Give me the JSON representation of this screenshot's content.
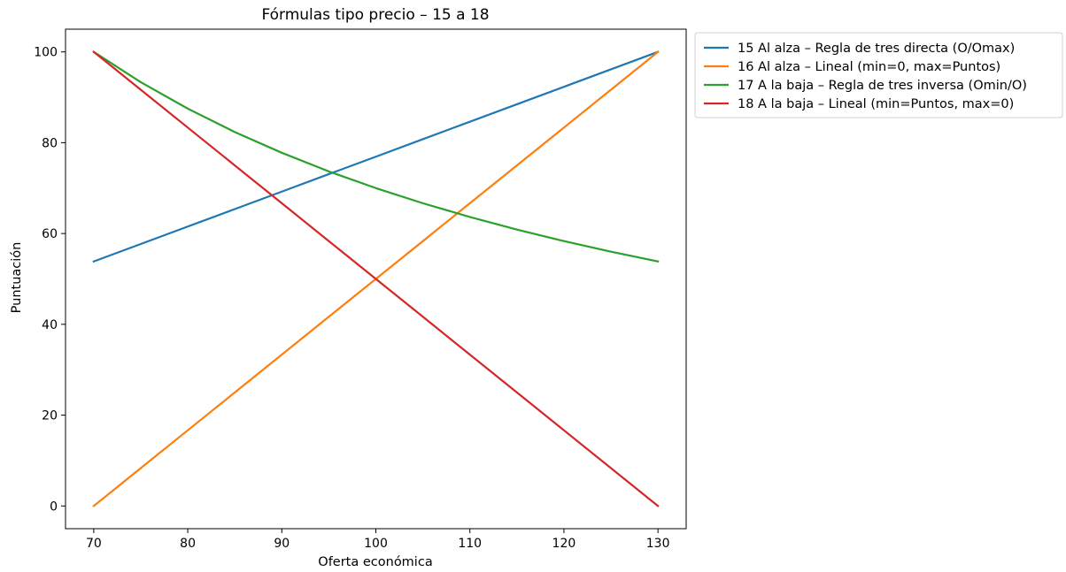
{
  "chart_data": {
    "type": "line",
    "title": "Fórmulas tipo precio – 15 a 18",
    "xlabel": "Oferta económica",
    "ylabel": "Puntuación",
    "xlim": [
      67,
      133
    ],
    "ylim": [
      -5,
      105
    ],
    "xticks": [
      70,
      80,
      90,
      100,
      110,
      120,
      130
    ],
    "yticks": [
      0,
      20,
      40,
      60,
      80,
      100
    ],
    "xtick_labels": [
      "70",
      "80",
      "90",
      "100",
      "110",
      "120",
      "130"
    ],
    "ytick_labels": [
      "0",
      "20",
      "40",
      "60",
      "80",
      "100"
    ],
    "grid": false,
    "legend_placement": "outside upper-right",
    "series": [
      {
        "name": "15 Al alza – Regla de tres directa (O/Omax)",
        "color": "#1f77b4",
        "x": [
          70,
          75,
          80,
          85,
          90,
          95,
          100,
          105,
          110,
          115,
          120,
          125,
          130
        ],
        "y": [
          53.85,
          57.69,
          61.54,
          65.38,
          69.23,
          73.08,
          76.92,
          80.77,
          84.62,
          88.46,
          92.31,
          96.15,
          100.0
        ]
      },
      {
        "name": "16 Al alza – Lineal (min=0, max=Puntos)",
        "color": "#ff7f0e",
        "x": [
          70,
          75,
          80,
          85,
          90,
          95,
          100,
          105,
          110,
          115,
          120,
          125,
          130
        ],
        "y": [
          0.0,
          8.33,
          16.67,
          25.0,
          33.33,
          41.67,
          50.0,
          58.33,
          66.67,
          75.0,
          83.33,
          91.67,
          100.0
        ]
      },
      {
        "name": "17 A la baja – Regla de tres inversa (Omin/O)",
        "color": "#2ca02c",
        "x": [
          70,
          75,
          80,
          85,
          90,
          95,
          100,
          105,
          110,
          115,
          120,
          125,
          130
        ],
        "y": [
          100.0,
          93.33,
          87.5,
          82.35,
          77.78,
          73.68,
          70.0,
          66.67,
          63.64,
          60.87,
          58.33,
          56.0,
          53.85
        ]
      },
      {
        "name": "18 A la baja – Lineal (min=Puntos, max=0)",
        "color": "#d62728",
        "x": [
          70,
          75,
          80,
          85,
          90,
          95,
          100,
          105,
          110,
          115,
          120,
          125,
          130
        ],
        "y": [
          100.0,
          91.67,
          83.33,
          75.0,
          66.67,
          58.33,
          50.0,
          41.67,
          33.33,
          25.0,
          16.67,
          8.33,
          0.0
        ]
      }
    ]
  }
}
